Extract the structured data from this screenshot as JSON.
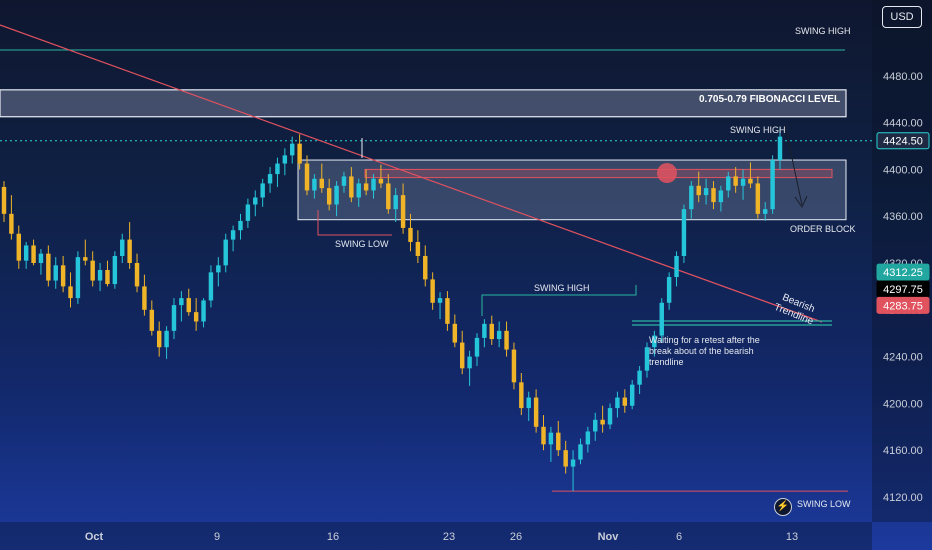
{
  "currency": "USD",
  "chart_data": {
    "type": "candlestick",
    "y_ticks": [
      4480,
      4440,
      4400,
      4360,
      4320,
      4280,
      4240,
      4200,
      4160,
      4120
    ],
    "y_tick_labels": [
      "4480.00",
      "4440.00",
      "4400.00",
      "4360.00",
      "4320.00",
      "4280.00",
      "4240.00",
      "4200.00",
      "4160.00",
      "4120.00"
    ],
    "x_labels": [
      "Oct",
      "9",
      "16",
      "23",
      "26",
      "Nov",
      "6",
      "13"
    ],
    "price_tags": [
      {
        "label": "4424.50",
        "value": 4424.5,
        "color": "#1e2a44",
        "border": "#2bd4d4"
      },
      {
        "label": "4312.25",
        "value": 4312.25,
        "color": "#22a7a0",
        "border": "#22a7a0"
      },
      {
        "label": "4297.75",
        "value": 4297.75,
        "color": "#000000",
        "border": "#000000"
      },
      {
        "label": "4283.75",
        "value": 4283.75,
        "color": "#e0525e",
        "border": "#e0525e"
      }
    ],
    "annotations": {
      "swing_high_top": "SWING HIGH",
      "fibonacci": "0.705-0.79 FIBONACCI LEVEL",
      "swing_high_right": "SWING HIGH",
      "order_block": "ORDER BLOCK",
      "swing_low_left": "SWING LOW",
      "swing_high_mid": "SWING HIGH",
      "bearish_trendline_1": "Bearish",
      "bearish_trendline_2": "Trendline",
      "retest_note_1": "Waiting for a retest after the",
      "retest_note_2": "break about of the bearish",
      "retest_note_3": "trendline",
      "swing_low_bottom": "SWING LOW"
    },
    "levels": {
      "swing_high_top": 4502,
      "fib_zone": [
        4445,
        4468
      ],
      "order_block": [
        4357,
        4408
      ],
      "inner_zone": [
        4393,
        4400
      ],
      "dotted_current": 4424.5,
      "swing_low_bottom": 4125,
      "retest_line": 4265
    },
    "colors": {
      "bull": "#26c6da",
      "bear": "#f0b429",
      "trendline": "#e05260",
      "swing_high_line": "#2bb5a0"
    },
    "candles": [
      [
        4385,
        4390,
        4355,
        4362
      ],
      [
        4362,
        4378,
        4340,
        4345
      ],
      [
        4345,
        4352,
        4315,
        4322
      ],
      [
        4322,
        4338,
        4315,
        4335
      ],
      [
        4335,
        4340,
        4318,
        4320
      ],
      [
        4320,
        4332,
        4310,
        4328
      ],
      [
        4328,
        4335,
        4300,
        4305
      ],
      [
        4305,
        4325,
        4298,
        4318
      ],
      [
        4318,
        4326,
        4295,
        4300
      ],
      [
        4300,
        4312,
        4282,
        4290
      ],
      [
        4290,
        4330,
        4285,
        4325
      ],
      [
        4325,
        4340,
        4318,
        4322
      ],
      [
        4322,
        4330,
        4300,
        4305
      ],
      [
        4305,
        4320,
        4296,
        4314
      ],
      [
        4314,
        4322,
        4300,
        4302
      ],
      [
        4302,
        4330,
        4298,
        4326
      ],
      [
        4326,
        4345,
        4320,
        4340
      ],
      [
        4340,
        4355,
        4315,
        4320
      ],
      [
        4320,
        4328,
        4295,
        4300
      ],
      [
        4300,
        4310,
        4275,
        4280
      ],
      [
        4280,
        4288,
        4258,
        4262
      ],
      [
        4262,
        4270,
        4240,
        4248
      ],
      [
        4248,
        4266,
        4238,
        4262
      ],
      [
        4262,
        4290,
        4255,
        4284
      ],
      [
        4284,
        4296,
        4270,
        4290
      ],
      [
        4290,
        4298,
        4275,
        4278
      ],
      [
        4278,
        4290,
        4262,
        4270
      ],
      [
        4270,
        4290,
        4265,
        4288
      ],
      [
        4288,
        4318,
        4282,
        4312
      ],
      [
        4312,
        4325,
        4300,
        4318
      ],
      [
        4318,
        4345,
        4312,
        4340
      ],
      [
        4340,
        4352,
        4330,
        4348
      ],
      [
        4348,
        4362,
        4340,
        4356
      ],
      [
        4356,
        4375,
        4350,
        4370
      ],
      [
        4370,
        4382,
        4360,
        4376
      ],
      [
        4376,
        4392,
        4368,
        4388
      ],
      [
        4388,
        4402,
        4380,
        4396
      ],
      [
        4396,
        4410,
        4385,
        4405
      ],
      [
        4405,
        4418,
        4395,
        4412
      ],
      [
        4412,
        4428,
        4405,
        4422
      ],
      [
        4422,
        4430,
        4400,
        4405
      ],
      [
        4405,
        4412,
        4378,
        4382
      ],
      [
        4382,
        4396,
        4375,
        4392
      ],
      [
        4392,
        4405,
        4380,
        4384
      ],
      [
        4384,
        4392,
        4365,
        4370
      ],
      [
        4370,
        4390,
        4360,
        4386
      ],
      [
        4386,
        4398,
        4380,
        4394
      ],
      [
        4394,
        4402,
        4372,
        4376
      ],
      [
        4376,
        4392,
        4368,
        4388
      ],
      [
        4388,
        4400,
        4378,
        4382
      ],
      [
        4382,
        4396,
        4375,
        4392
      ],
      [
        4392,
        4404,
        4384,
        4388
      ],
      [
        4388,
        4396,
        4362,
        4366
      ],
      [
        4366,
        4384,
        4355,
        4378
      ],
      [
        4378,
        4388,
        4345,
        4350
      ],
      [
        4350,
        4362,
        4330,
        4338
      ],
      [
        4338,
        4348,
        4320,
        4326
      ],
      [
        4326,
        4335,
        4300,
        4306
      ],
      [
        4306,
        4312,
        4280,
        4286
      ],
      [
        4286,
        4295,
        4272,
        4290
      ],
      [
        4290,
        4296,
        4262,
        4268
      ],
      [
        4268,
        4276,
        4248,
        4252
      ],
      [
        4252,
        4262,
        4225,
        4230
      ],
      [
        4230,
        4245,
        4215,
        4240
      ],
      [
        4240,
        4260,
        4232,
        4256
      ],
      [
        4256,
        4272,
        4248,
        4268
      ],
      [
        4268,
        4275,
        4250,
        4255
      ],
      [
        4255,
        4270,
        4248,
        4262
      ],
      [
        4262,
        4270,
        4240,
        4246
      ],
      [
        4246,
        4252,
        4212,
        4218
      ],
      [
        4218,
        4226,
        4190,
        4196
      ],
      [
        4196,
        4210,
        4185,
        4205
      ],
      [
        4205,
        4212,
        4175,
        4180
      ],
      [
        4180,
        4190,
        4160,
        4165
      ],
      [
        4165,
        4180,
        4150,
        4175
      ],
      [
        4175,
        4185,
        4155,
        4160
      ],
      [
        4160,
        4168,
        4140,
        4146
      ],
      [
        4146,
        4160,
        4125,
        4152
      ],
      [
        4152,
        4170,
        4148,
        4165
      ],
      [
        4165,
        4180,
        4158,
        4176
      ],
      [
        4176,
        4192,
        4168,
        4186
      ],
      [
        4186,
        4198,
        4175,
        4182
      ],
      [
        4182,
        4200,
        4178,
        4196
      ],
      [
        4196,
        4210,
        4188,
        4205
      ],
      [
        4205,
        4212,
        4192,
        4198
      ],
      [
        4198,
        4220,
        4195,
        4216
      ],
      [
        4216,
        4232,
        4208,
        4228
      ],
      [
        4228,
        4252,
        4222,
        4248
      ],
      [
        4248,
        4262,
        4240,
        4258
      ],
      [
        4258,
        4290,
        4252,
        4286
      ],
      [
        4286,
        4312,
        4280,
        4308
      ],
      [
        4308,
        4330,
        4300,
        4326
      ],
      [
        4326,
        4370,
        4320,
        4366
      ],
      [
        4366,
        4390,
        4358,
        4386
      ],
      [
        4386,
        4398,
        4372,
        4378
      ],
      [
        4378,
        4392,
        4370,
        4384
      ],
      [
        4384,
        4390,
        4366,
        4372
      ],
      [
        4372,
        4386,
        4364,
        4382
      ],
      [
        4382,
        4398,
        4376,
        4394
      ],
      [
        4394,
        4402,
        4380,
        4386
      ],
      [
        4386,
        4400,
        4374,
        4392
      ],
      [
        4392,
        4406,
        4384,
        4388
      ],
      [
        4388,
        4394,
        4358,
        4362
      ],
      [
        4362,
        4372,
        4356,
        4366
      ],
      [
        4366,
        4412,
        4362,
        4408
      ],
      [
        4408,
        4436,
        4400,
        4428
      ]
    ]
  }
}
